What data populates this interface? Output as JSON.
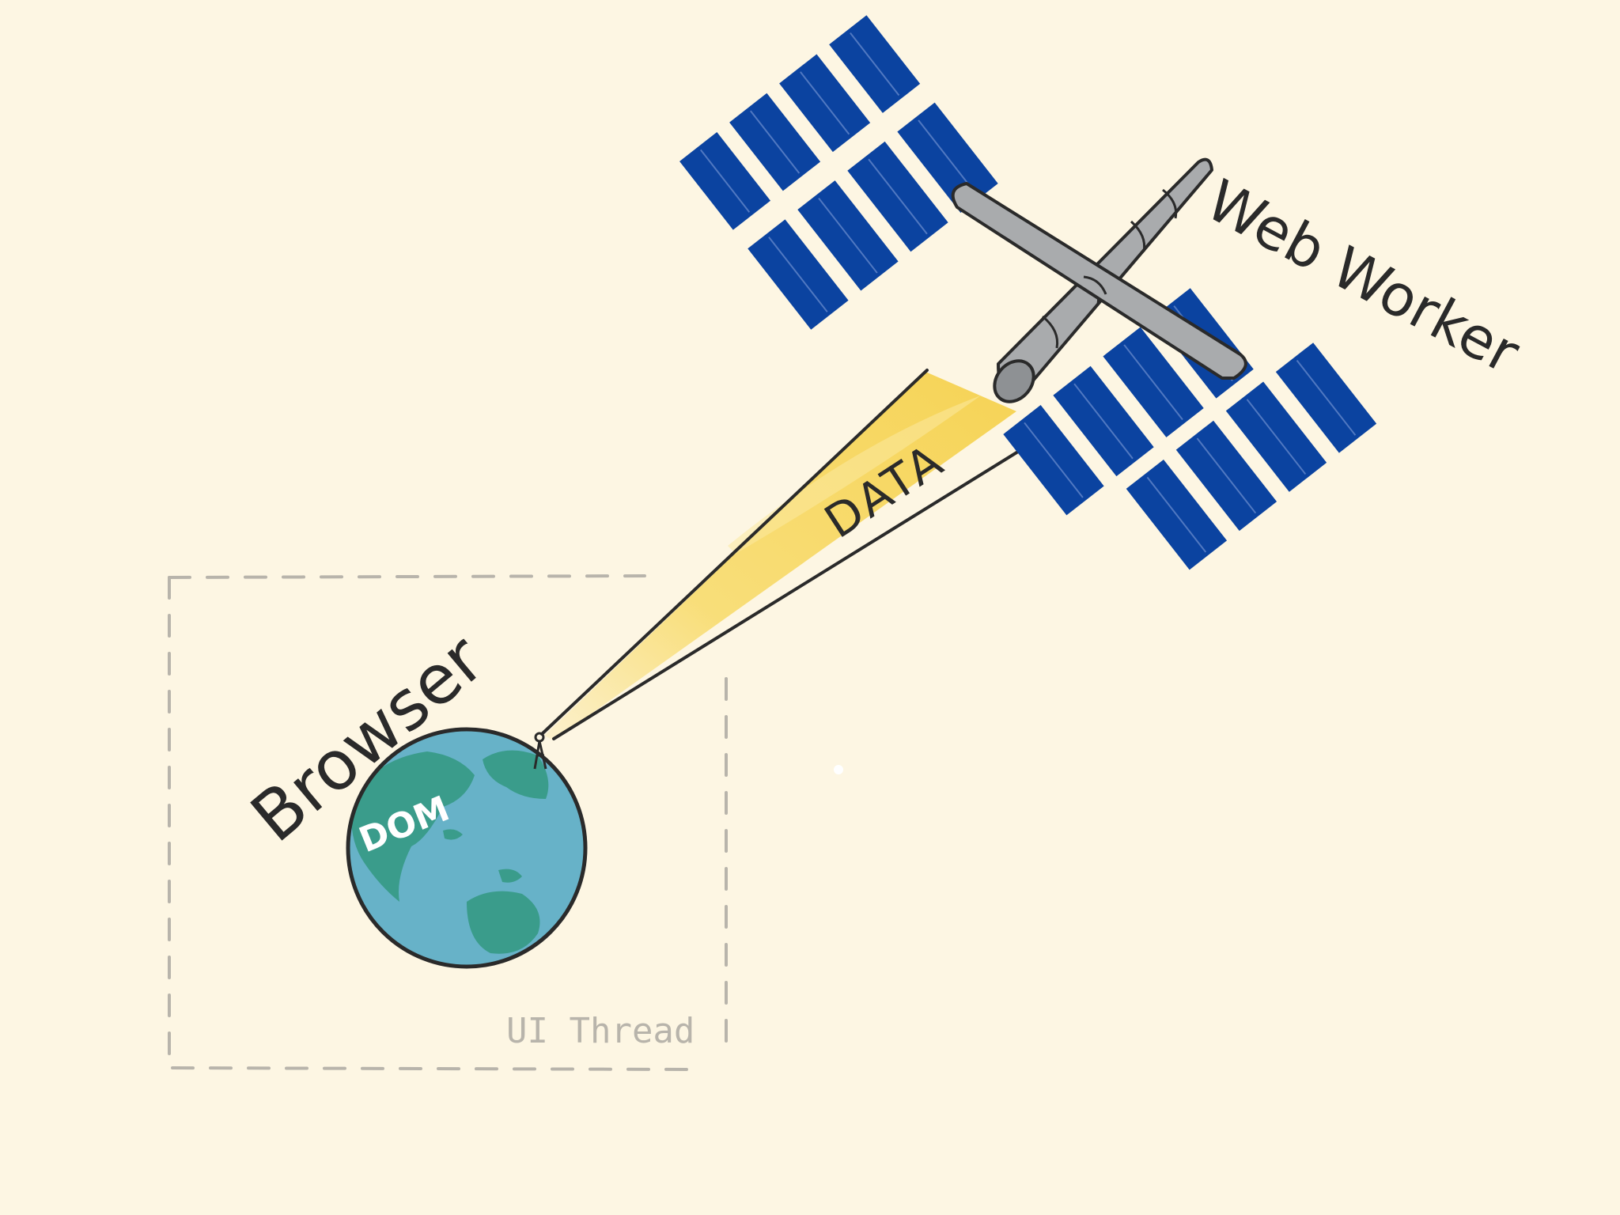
{
  "labels": {
    "web_worker": "Web Worker",
    "data": "DATA",
    "browser": "Browser",
    "dom": "DOM",
    "ui_thread": "UI Thread"
  },
  "colors": {
    "background": "#fdf6e3",
    "solar_panel": "#0b43a0",
    "solar_panel_line": "#6e8fd0",
    "truss": "#a9abad",
    "truss_dark": "#8e9194",
    "beam": "#f7d656",
    "beam_light": "#fbe9a0",
    "ocean": "#67b2c8",
    "land": "#3a9c8b",
    "dashed_border": "#b8b4ab",
    "ink": "#2a2a2a"
  },
  "icons": {
    "satellite": "space-station-icon",
    "planet": "earth-globe-icon",
    "antenna": "antenna-icon"
  }
}
